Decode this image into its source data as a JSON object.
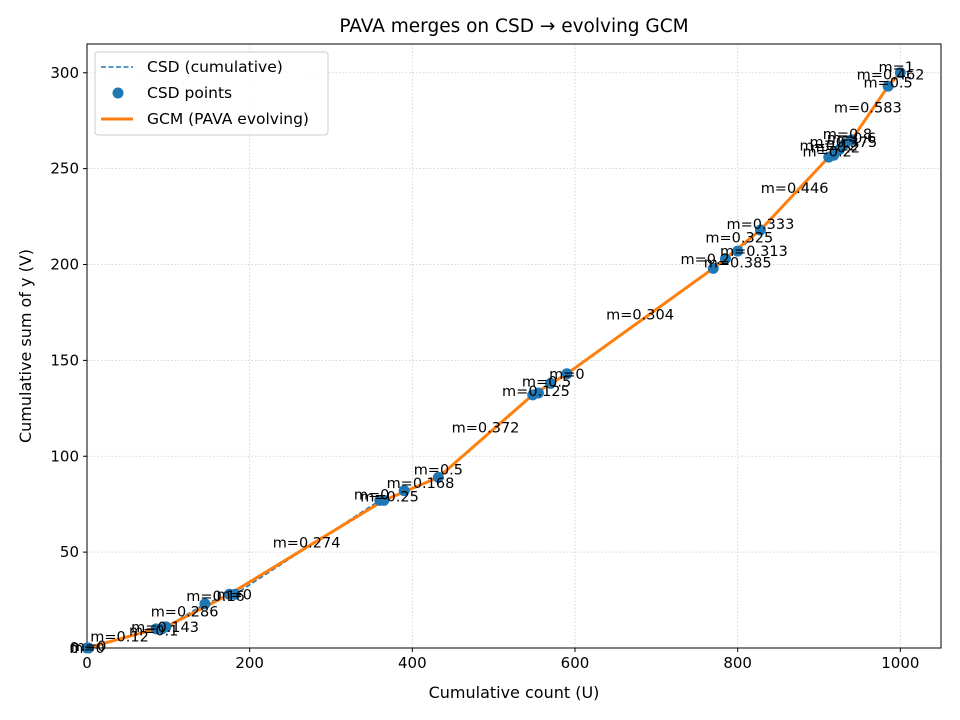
{
  "chart_data": {
    "type": "line",
    "title": "PAVA merges on CSD → evolving GCM",
    "xlabel": "Cumulative count (U)",
    "ylabel": "Cumulative sum of y (V)",
    "xlim": [
      0,
      1050
    ],
    "ylim": [
      0,
      315
    ],
    "xticks": [
      0,
      200,
      400,
      600,
      800,
      1000
    ],
    "yticks": [
      0,
      50,
      100,
      150,
      200,
      250,
      300
    ],
    "grid": true,
    "legend_position": "top-left",
    "colors": {
      "csd": "#1f77b4",
      "gcm": "#ff7f0e",
      "grid": "#cccccc"
    },
    "series": [
      {
        "name": "CSD (cumulative)",
        "style": "dashed-line",
        "x": [
          0,
          2,
          85,
          92,
          97,
          145,
          175,
          182,
          360,
          365,
          390,
          432,
          548,
          555,
          570,
          590,
          770,
          785,
          800,
          828,
          912,
          918,
          925,
          932,
          940,
          985,
          1000
        ],
        "y": [
          0,
          0,
          10,
          10,
          11,
          23,
          28,
          28,
          77,
          77,
          82,
          89,
          132,
          133,
          138,
          143,
          198,
          203,
          207,
          218,
          256,
          257,
          260,
          263,
          265,
          293,
          300
        ]
      },
      {
        "name": "CSD points",
        "style": "scatter",
        "x": [
          0,
          2,
          85,
          92,
          97,
          145,
          175,
          182,
          360,
          365,
          390,
          432,
          548,
          555,
          570,
          590,
          770,
          785,
          800,
          828,
          912,
          918,
          925,
          932,
          940,
          985,
          1000
        ],
        "y": [
          0,
          0,
          10,
          10,
          11,
          23,
          28,
          28,
          77,
          77,
          82,
          89,
          132,
          133,
          138,
          143,
          198,
          203,
          207,
          218,
          256,
          257,
          260,
          263,
          265,
          293,
          300
        ]
      },
      {
        "name": "GCM (PAVA evolving)",
        "style": "solid-line",
        "x": [
          0,
          85,
          97,
          175,
          365,
          432,
          548,
          590,
          770,
          828,
          912,
          940,
          985,
          1000
        ],
        "y": [
          0,
          10,
          11,
          28,
          77,
          89,
          132,
          143,
          198,
          218,
          256,
          265,
          293,
          300
        ]
      }
    ],
    "annotations": [
      {
        "text": "m=0",
        "x": 0,
        "y": 0
      },
      {
        "text": "m=0",
        "x": 2,
        "y": 1
      },
      {
        "text": "m=0.12",
        "x": 40,
        "y": 6
      },
      {
        "text": "m=0.1",
        "x": 82,
        "y": 9
      },
      {
        "text": "m=0.143",
        "x": 96,
        "y": 11
      },
      {
        "text": "m=0.286",
        "x": 120,
        "y": 19
      },
      {
        "text": "m=0.16",
        "x": 158,
        "y": 27
      },
      {
        "text": "m=0",
        "x": 181,
        "y": 28
      },
      {
        "text": "m=0.274",
        "x": 270,
        "y": 55
      },
      {
        "text": "m=0",
        "x": 350,
        "y": 80
      },
      {
        "text": "m=0.25",
        "x": 372,
        "y": 79
      },
      {
        "text": "m=0.168",
        "x": 410,
        "y": 86
      },
      {
        "text": "m=0.5",
        "x": 432,
        "y": 93
      },
      {
        "text": "m=0.372",
        "x": 490,
        "y": 115
      },
      {
        "text": "m=0.125",
        "x": 552,
        "y": 134
      },
      {
        "text": "m=0.5",
        "x": 565,
        "y": 139
      },
      {
        "text": "m=0",
        "x": 590,
        "y": 143
      },
      {
        "text": "m=0.304",
        "x": 680,
        "y": 174
      },
      {
        "text": "m=0.2",
        "x": 760,
        "y": 203
      },
      {
        "text": "m=0.385",
        "x": 800,
        "y": 201
      },
      {
        "text": "m=0.313",
        "x": 820,
        "y": 207
      },
      {
        "text": "m=0.325",
        "x": 802,
        "y": 214
      },
      {
        "text": "m=0.333",
        "x": 828,
        "y": 221
      },
      {
        "text": "m=0.446",
        "x": 870,
        "y": 240
      },
      {
        "text": "m=0.2",
        "x": 910,
        "y": 259
      },
      {
        "text": "m=0.12",
        "x": 912,
        "y": 262
      },
      {
        "text": "m=0.2",
        "x": 920,
        "y": 261
      },
      {
        "text": "m=0.375",
        "x": 930,
        "y": 264
      },
      {
        "text": "m=0.6",
        "x": 940,
        "y": 266
      },
      {
        "text": "m=0.8",
        "x": 935,
        "y": 268
      },
      {
        "text": "m=0.583",
        "x": 960,
        "y": 282
      },
      {
        "text": "m=0.5",
        "x": 985,
        "y": 295
      },
      {
        "text": "m=0.462",
        "x": 988,
        "y": 299
      },
      {
        "text": "m=1",
        "x": 995,
        "y": 303
      }
    ]
  }
}
